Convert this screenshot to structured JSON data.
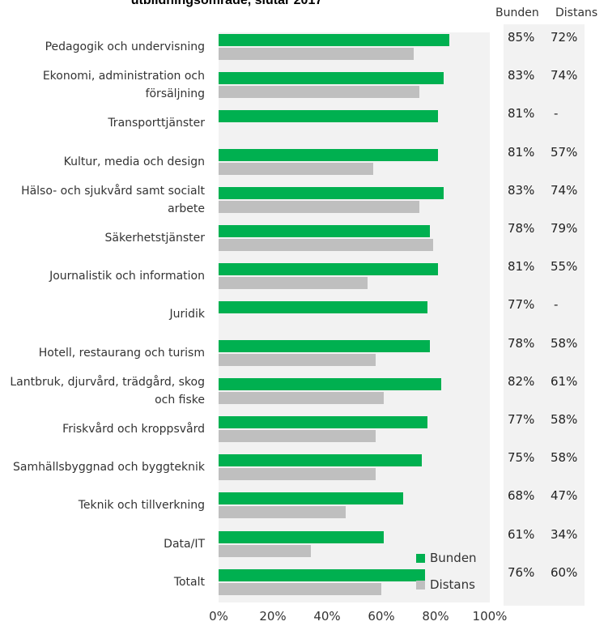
{
  "chart_data": {
    "type": "bar",
    "orientation": "horizontal",
    "title": "utbildningsområde, slutår 2017",
    "table_headers": [
      "Bunden",
      "Distans"
    ],
    "categories": [
      "Pedagogik och undervisning",
      "Ekonomi, administration och försäljning",
      "Transporttjänster",
      "Kultur, media och design",
      "Hälso- och sjukvård samt socialt arbete",
      "Säkerhetstjänster",
      "Journalistik och information",
      "Juridik",
      "Hotell, restaurang och turism",
      "Lantbruk, djurvård, trädgård, skog och fiske",
      "Friskvård och kroppsvård",
      "Samhällsbyggnad och byggteknik",
      "Teknik och tillverkning",
      "Data/IT",
      "Totalt"
    ],
    "series": [
      {
        "name": "Bunden",
        "color": "#00b050",
        "values": [
          85,
          83,
          81,
          81,
          83,
          78,
          81,
          77,
          78,
          82,
          77,
          75,
          68,
          61,
          76
        ]
      },
      {
        "name": "Distans",
        "color": "#bfbfbf",
        "values": [
          72,
          74,
          null,
          57,
          74,
          79,
          55,
          null,
          58,
          61,
          58,
          58,
          47,
          34,
          60
        ]
      }
    ],
    "table_values": {
      "Bunden": [
        "85%",
        "83%",
        "81%",
        "81%",
        "83%",
        "78%",
        "81%",
        "77%",
        "78%",
        "82%",
        "77%",
        "75%",
        "68%",
        "61%",
        "76%"
      ],
      "Distans": [
        "72%",
        "74%",
        "-",
        "57%",
        "74%",
        "79%",
        "55%",
        "-",
        "58%",
        "61%",
        "58%",
        "58%",
        "47%",
        "34%",
        "60%"
      ]
    },
    "xlim": [
      0,
      100
    ],
    "x_ticks": [
      "0%",
      "20%",
      "40%",
      "60%",
      "80%",
      "100%"
    ],
    "grid": false,
    "legend_position": "bottom-right"
  }
}
